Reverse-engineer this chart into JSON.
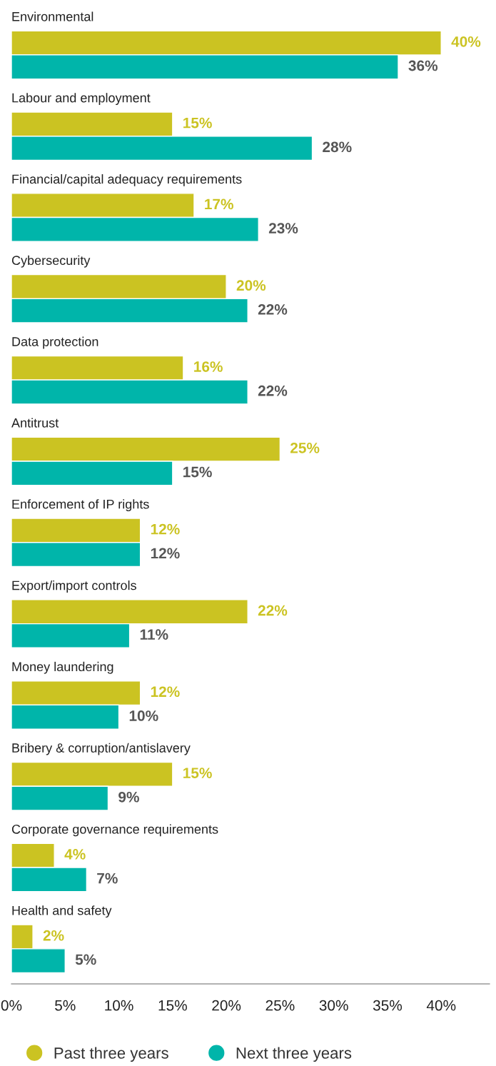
{
  "chart_data": {
    "type": "bar",
    "orientation": "horizontal",
    "categories": [
      "Environmental",
      "Labour and employment",
      "Financial/capital adequacy requirements",
      "Cybersecurity",
      "Data protection",
      "Antitrust",
      "Enforcement of IP rights",
      "Export/import controls",
      "Money laundering",
      "Bribery & corruption/antislavery",
      "Corporate governance requirements",
      "Health and safety"
    ],
    "series": [
      {
        "name": "Past three years",
        "color": "#cbc322",
        "values": [
          40,
          15,
          17,
          20,
          16,
          25,
          12,
          22,
          12,
          15,
          4,
          2
        ],
        "value_labels": [
          "40%",
          "15%",
          "17%",
          "20%",
          "16%",
          "25%",
          "12%",
          "22%",
          "12%",
          "15%",
          "4%",
          "2%"
        ]
      },
      {
        "name": "Next three years",
        "color": "#00b5aa",
        "values": [
          36,
          28,
          23,
          22,
          22,
          15,
          12,
          11,
          10,
          9,
          7,
          5
        ],
        "value_labels": [
          "36%",
          "28%",
          "23%",
          "22%",
          "22%",
          "15%",
          "12%",
          "11%",
          "10%",
          "9%",
          "7%",
          "5%"
        ]
      }
    ],
    "xlim": [
      0,
      44.5
    ],
    "xticks": [
      {
        "value": 0,
        "label": "0%"
      },
      {
        "value": 5,
        "label": "5%"
      },
      {
        "value": 10,
        "label": "10%"
      },
      {
        "value": 15,
        "label": "15%"
      },
      {
        "value": 20,
        "label": "20%"
      },
      {
        "value": 25,
        "label": "25%"
      },
      {
        "value": 30,
        "label": "30%"
      },
      {
        "value": 35,
        "label": "35%"
      },
      {
        "value": 40,
        "label": "40%"
      }
    ],
    "grid": false,
    "legend": "bottom"
  }
}
